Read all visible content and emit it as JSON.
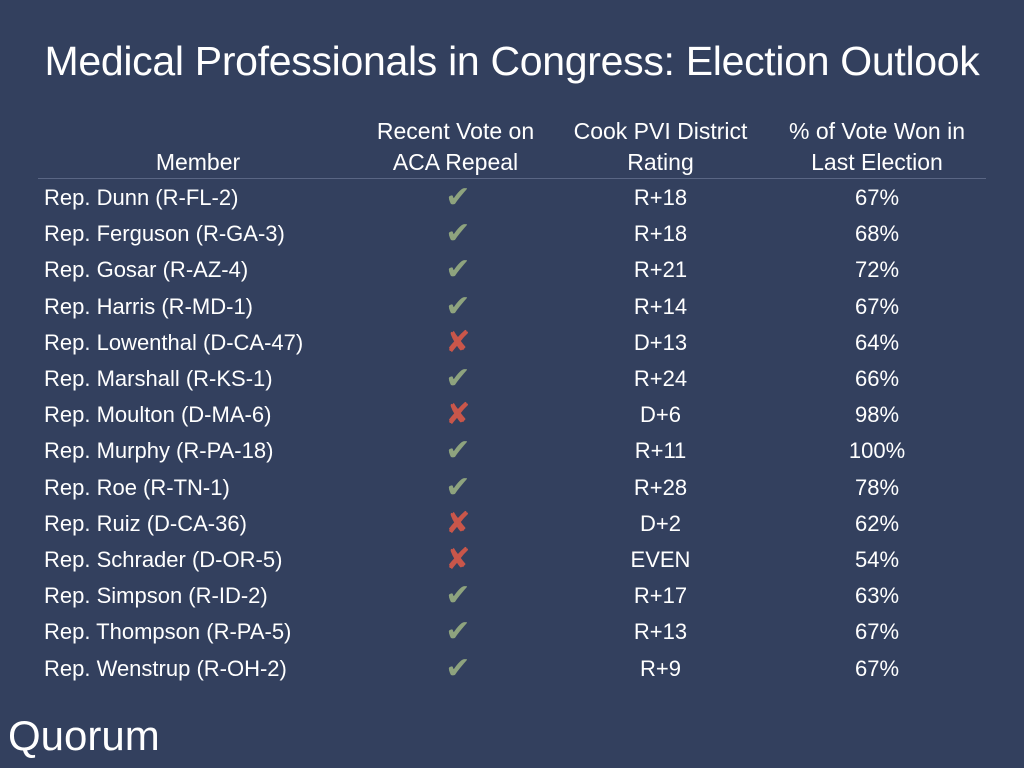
{
  "title": "Medical Professionals in Congress: Election Outlook",
  "headers": {
    "member": "Member",
    "vote_line1": "Recent Vote on",
    "vote_line2": "ACA Repeal",
    "pvi_line1": "Cook PVI District",
    "pvi_line2": "Rating",
    "pct_line1": "% of Vote Won in",
    "pct_line2": "Last Election"
  },
  "vote_icons": {
    "yes": "check-icon",
    "no": "cross-icon",
    "yes_color": "#8ea37e",
    "no_color": "#c9564a"
  },
  "rows": [
    {
      "member": "Rep. Dunn (R-FL-2)",
      "vote": "yes",
      "pvi": "R+18",
      "pct": "67%"
    },
    {
      "member": "Rep. Ferguson (R-GA-3)",
      "vote": "yes",
      "pvi": "R+18",
      "pct": "68%"
    },
    {
      "member": "Rep. Gosar (R-AZ-4)",
      "vote": "yes",
      "pvi": "R+21",
      "pct": "72%"
    },
    {
      "member": "Rep. Harris (R-MD-1)",
      "vote": "yes",
      "pvi": "R+14",
      "pct": "67%"
    },
    {
      "member": "Rep. Lowenthal (D-CA-47)",
      "vote": "no",
      "pvi": "D+13",
      "pct": "64%"
    },
    {
      "member": "Rep. Marshall (R-KS-1)",
      "vote": "yes",
      "pvi": "R+24",
      "pct": "66%"
    },
    {
      "member": "Rep. Moulton (D-MA-6)",
      "vote": "no",
      "pvi": "D+6",
      "pct": "98%"
    },
    {
      "member": "Rep. Murphy (R-PA-18)",
      "vote": "yes",
      "pvi": "R+11",
      "pct": "100%"
    },
    {
      "member": "Rep. Roe (R-TN-1)",
      "vote": "yes",
      "pvi": "R+28",
      "pct": "78%"
    },
    {
      "member": "Rep. Ruiz (D-CA-36)",
      "vote": "no",
      "pvi": "D+2",
      "pct": "62%"
    },
    {
      "member": "Rep. Schrader (D-OR-5)",
      "vote": "no",
      "pvi": "EVEN",
      "pct": "54%"
    },
    {
      "member": "Rep. Simpson (R-ID-2)",
      "vote": "yes",
      "pvi": "R+17",
      "pct": "63%"
    },
    {
      "member": "Rep. Thompson (R-PA-5)",
      "vote": "yes",
      "pvi": "R+13",
      "pct": "67%"
    },
    {
      "member": "Rep. Wenstrup (R-OH-2)",
      "vote": "yes",
      "pvi": "R+9",
      "pct": "67%"
    }
  ],
  "logo": "Quorum"
}
